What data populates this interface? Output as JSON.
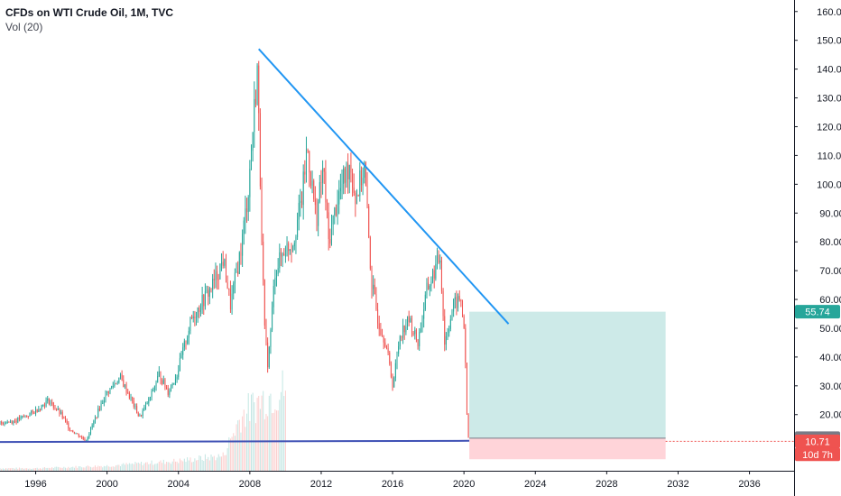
{
  "header": {
    "title": "CFDs on WTI Crude Oil, 1M, TVC",
    "volume_label": "Vol (20)"
  },
  "colors": {
    "up": "#26a69a",
    "down": "#ef5350",
    "trendline": "#2196f3",
    "support_line": "#3f51b5",
    "profit_zone": "#b2dfdb",
    "loss_zone": "#ffcdd2",
    "axis_line": "#131722"
  },
  "chart_data": {
    "type": "candlestick",
    "title": "CFDs on WTI Crude Oil, 1M, TVC",
    "xlabel": "",
    "ylabel": "",
    "xlim": [
      1994.0,
      2038.5
    ],
    "ylim": [
      0.5,
      164
    ],
    "x_ticks": [
      "1996",
      "2000",
      "2004",
      "2008",
      "2012",
      "2016",
      "2020",
      "2024",
      "2028",
      "2032",
      "2036"
    ],
    "y_ticks": [
      "20.00",
      "30.00",
      "40.00",
      "50.00",
      "60.00",
      "70.00",
      "80.00",
      "90.00",
      "100.00",
      "110.00",
      "120.00",
      "130.00",
      "140.00",
      "150.00",
      "160.00"
    ],
    "price_path": [
      [
        1994.0,
        17
      ],
      [
        1995.0,
        18
      ],
      [
        1996.0,
        21
      ],
      [
        1996.8,
        25
      ],
      [
        1997.5,
        20
      ],
      [
        1998.0,
        15
      ],
      [
        1998.9,
        11
      ],
      [
        1999.5,
        20
      ],
      [
        2000.0,
        27
      ],
      [
        2000.8,
        33
      ],
      [
        2001.3,
        27
      ],
      [
        2001.9,
        19
      ],
      [
        2002.5,
        26
      ],
      [
        2003.0,
        34
      ],
      [
        2003.5,
        28
      ],
      [
        2004.0,
        34
      ],
      [
        2004.8,
        53
      ],
      [
        2005.5,
        60
      ],
      [
        2006.0,
        65
      ],
      [
        2006.6,
        74
      ],
      [
        2007.0,
        58
      ],
      [
        2007.6,
        78
      ],
      [
        2008.0,
        98
      ],
      [
        2008.5,
        140
      ],
      [
        2008.9,
        50
      ],
      [
        2009.1,
        37
      ],
      [
        2009.5,
        70
      ],
      [
        2010.0,
        77
      ],
      [
        2010.5,
        80
      ],
      [
        2011.0,
        95
      ],
      [
        2011.3,
        113
      ],
      [
        2011.8,
        88
      ],
      [
        2012.2,
        106
      ],
      [
        2012.5,
        80
      ],
      [
        2013.0,
        95
      ],
      [
        2013.7,
        108
      ],
      [
        2014.0,
        95
      ],
      [
        2014.5,
        106
      ],
      [
        2014.9,
        66
      ],
      [
        2015.3,
        52
      ],
      [
        2015.7,
        45
      ],
      [
        2016.1,
        30
      ],
      [
        2016.5,
        48
      ],
      [
        2017.0,
        53
      ],
      [
        2017.5,
        45
      ],
      [
        2018.0,
        63
      ],
      [
        2018.75,
        75
      ],
      [
        2019.0,
        45
      ],
      [
        2019.5,
        58
      ],
      [
        2019.9,
        60
      ],
      [
        2020.1,
        50
      ],
      [
        2020.25,
        20
      ],
      [
        2020.33,
        11.82
      ]
    ],
    "volume_bars": [
      [
        1996.0,
        1
      ],
      [
        2000.0,
        2
      ],
      [
        2004.0,
        4
      ],
      [
        2006.5,
        6
      ],
      [
        2007.5,
        22
      ],
      [
        2008.5,
        28
      ],
      [
        2009.0,
        30
      ],
      [
        2009.6,
        32
      ],
      [
        2009.9,
        33
      ]
    ],
    "trendline": {
      "from": [
        2008.5,
        147
      ],
      "to": [
        2022.5,
        51.5
      ]
    },
    "support_line": {
      "from": [
        1994.0,
        10.5
      ],
      "to": [
        2020.3,
        10.9
      ]
    },
    "position": {
      "x_start": 2020.3,
      "x_end": 2031.3,
      "entry": 11.82,
      "target": 55.74,
      "stop": 4.5
    },
    "price_tags": [
      {
        "label": "55.74",
        "value": 55.74,
        "color": "#26a69a"
      },
      {
        "label": "11.82",
        "value": 11.82,
        "color": "#787b86"
      },
      {
        "label": "10.71",
        "value": 10.71,
        "color": "#ef5350"
      },
      {
        "label": "10d 7h",
        "value": 6.2,
        "color": "#ef5350"
      }
    ]
  }
}
